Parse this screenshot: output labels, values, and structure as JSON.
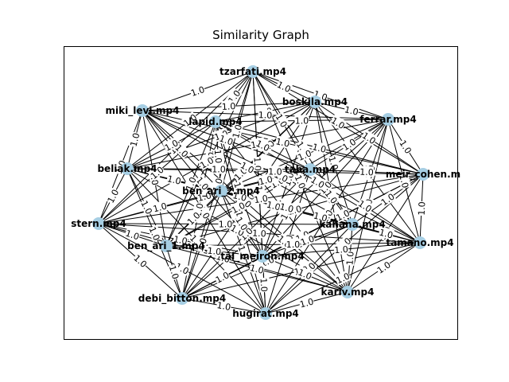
{
  "title": "Similarity Graph",
  "node_color": "#a6cee3",
  "edge_color": "#000000",
  "edge_weight_label": "1.0",
  "nodes": [
    {
      "id": "tzarfati",
      "label": "tzarfati.mp4"
    },
    {
      "id": "boskila",
      "label": "boskila.mp4"
    },
    {
      "id": "ferrar",
      "label": "ferrar.mp4"
    },
    {
      "id": "miki_levi",
      "label": "miki_levi.mp4"
    },
    {
      "id": "lapid",
      "label": "lapid.mp4"
    },
    {
      "id": "taha",
      "label": "taha.mp4"
    },
    {
      "id": "meir_cohen",
      "label": "meir_cohen.m"
    },
    {
      "id": "beliak",
      "label": "beliak.mp4"
    },
    {
      "id": "ben_ari_2",
      "label": "ben_ari_2.mp4"
    },
    {
      "id": "kahana",
      "label": "kahana.mp4"
    },
    {
      "id": "stern",
      "label": "stern.mp4"
    },
    {
      "id": "tamano",
      "label": "tamano.mp4"
    },
    {
      "id": "ben_ari_1",
      "label": "ben_ari_1.mp4"
    },
    {
      "id": "tal_meiron",
      "label": "tal_meiron.mp4"
    },
    {
      "id": "kariv",
      "label": "kariv.mp4"
    },
    {
      "id": "debi_bitton",
      "label": "debi_bitton.mp4"
    },
    {
      "id": "hugirat",
      "label": "hugirat.mp4"
    }
  ]
}
